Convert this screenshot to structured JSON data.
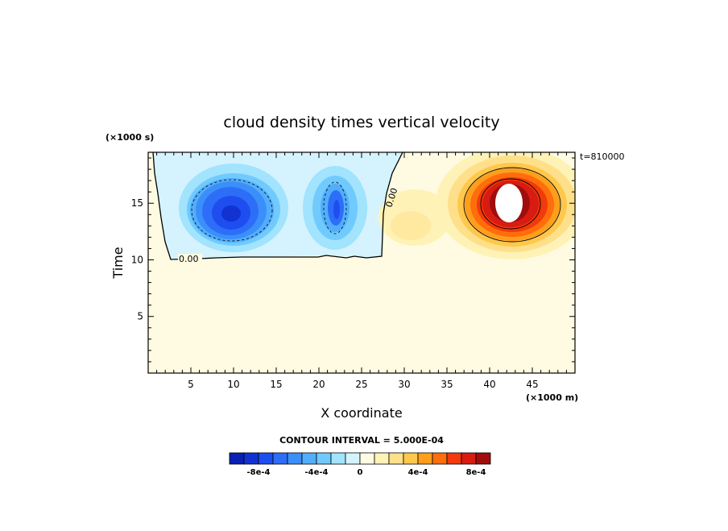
{
  "chart_data": {
    "type": "heatmap",
    "title": "cloud density times vertical velocity",
    "xlabel": "X coordinate",
    "ylabel": "Time",
    "x_unit_label": "(×1000 m)",
    "y_unit_label": "(×1000 s)",
    "time_stamp": "t=810000",
    "xlim": [
      0,
      50
    ],
    "ylim": [
      0,
      19.5
    ],
    "xticks": [
      5,
      10,
      15,
      20,
      25,
      30,
      35,
      40,
      45
    ],
    "yticks": [
      5,
      10,
      15
    ],
    "contour_interval_text": "CONTOUR INTERVAL = 5.000E-04",
    "contour_labels": [
      "0.00",
      "0.00"
    ],
    "colorbar": {
      "tick_labels": [
        "-8e-4",
        "-4e-4",
        "0",
        "4e-4",
        "8e-4"
      ],
      "colors": [
        "#0a1fb5",
        "#1232d2",
        "#1e4ef0",
        "#2d6ef8",
        "#3b8ff9",
        "#52aefc",
        "#70cafe",
        "#a2e3fe",
        "#d4f3fe",
        "#fffbe2",
        "#fff2b6",
        "#ffe08a",
        "#ffc74c",
        "#ff9e1b",
        "#ff6d0d",
        "#f23a0a",
        "#d81c12",
        "#a10d0d"
      ]
    },
    "features": [
      {
        "kind": "negative_cell",
        "x_center": 10,
        "y_center": 14.5,
        "min_value": -0.00095
      },
      {
        "kind": "negative_cell",
        "x_center": 22,
        "y_center": 14.8,
        "min_value": -0.0007
      },
      {
        "kind": "positive_cell",
        "x_center": 41,
        "y_center": 15,
        "max_value": 0.001
      },
      {
        "kind": "weak_positive",
        "x_center": 32,
        "y_center": 13,
        "max_value": 0.0002
      }
    ]
  }
}
